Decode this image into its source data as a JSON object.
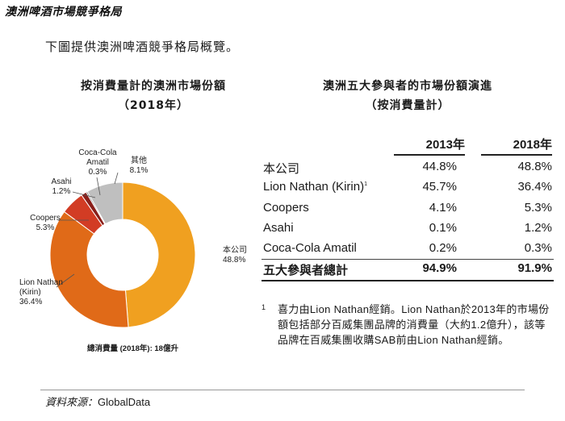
{
  "section_title": "澳洲啤酒市場競爭格局",
  "intro": "下圖提供澳洲啤酒競爭格局概覽。",
  "chart_title_line1": "按消費量計的澳洲市場份額",
  "chart_title_line2": "（2018年）",
  "chart_data": {
    "type": "pie",
    "style": "donut",
    "title": "按消費量計的澳洲市場份額（2018年）",
    "slices": [
      {
        "name": "本公司",
        "value": 48.8,
        "label": "48.8%",
        "color": "#f0a020"
      },
      {
        "name": "Lion Nathan (Kirin)",
        "value": 36.4,
        "label": "36.4%",
        "color": "#e06a18"
      },
      {
        "name": "Coopers",
        "value": 5.3,
        "label": "5.3%",
        "color": "#d23c24"
      },
      {
        "name": "Asahi",
        "value": 1.2,
        "label": "1.2%",
        "color": "#8a1f1a"
      },
      {
        "name": "Coca-Cola Amatil",
        "value": 0.3,
        "label": "0.3%",
        "color": "#5a5a5a"
      },
      {
        "name": "其他",
        "value": 8.1,
        "label": "8.1%",
        "color": "#bfbfbf"
      }
    ],
    "labels": {
      "company": {
        "name": "本公司",
        "value": "48.8%"
      },
      "lion": {
        "name1": "Lion Nathan",
        "name2": "(Kirin)",
        "value": "36.4%"
      },
      "coopers": {
        "name": "Coopers",
        "value": "5.3%"
      },
      "asahi": {
        "name": "Asahi",
        "value": "1.2%"
      },
      "coke": {
        "name1": "Coca-Cola",
        "name2": "Amatil",
        "value": "0.3%"
      },
      "other": {
        "name": "其他",
        "value": "8.1%"
      }
    },
    "note": "總消費量 (2018年): 18億升"
  },
  "table_title_line1": "澳洲五大參與者的市場份額演進",
  "table_title_line2": "（按消費量計）",
  "table": {
    "headers": [
      "2013年",
      "2018年"
    ],
    "rows": [
      {
        "name": "本公司",
        "v2013": "44.8%",
        "v2018": "48.8%"
      },
      {
        "name": "Lion Nathan (Kirin)",
        "sup": "1",
        "v2013": "45.7%",
        "v2018": "36.4%"
      },
      {
        "name": "Coopers",
        "v2013": "4.1%",
        "v2018": "5.3%"
      },
      {
        "name": "Asahi",
        "v2013": "0.1%",
        "v2018": "1.2%"
      },
      {
        "name": "Coca-Cola Amatil",
        "v2013": "0.2%",
        "v2018": "0.3%"
      }
    ],
    "total": {
      "name": "五大參與者總計",
      "v2013": "94.9%",
      "v2018": "91.9%"
    }
  },
  "footnote": {
    "mark": "1",
    "text": "喜力由Lion Nathan經銷。Lion Nathan於2013年的市場份額包括部分百威集團品牌的消費量（大約1.2億升），該等品牌在百威集團收購SAB前由Lion Nathan經銷。"
  },
  "source": {
    "prefix": "資料來源：",
    "brand": "GlobalData"
  }
}
